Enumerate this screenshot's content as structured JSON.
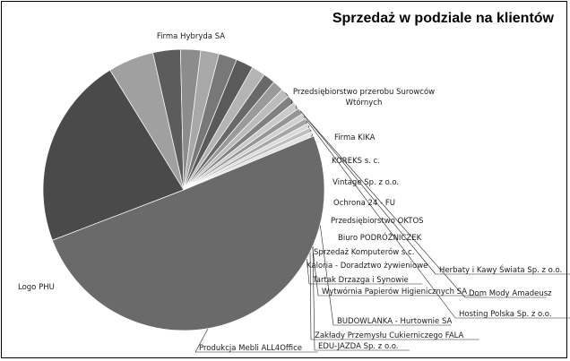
{
  "chart_data": {
    "type": "pie",
    "title": "Sprzedaż w podziale na klientów",
    "legend": "none",
    "slices": [
      {
        "label": "Firma Hybryda SA",
        "value": 21.0,
        "color": "#4a4a4a"
      },
      {
        "label": "Przedsiębiorstwo przerobu Surowców Wtórnych",
        "value": 5.0,
        "color": "#a0a0a0"
      },
      {
        "label": "Firma KIKA",
        "value": 3.0,
        "color": "#5c5c5c"
      },
      {
        "label": "KOREKS s. c.",
        "value": 2.2,
        "color": "#8c8c8c"
      },
      {
        "label": "Vintage Sp. z o.o.",
        "value": 2.0,
        "color": "#a8a8a8"
      },
      {
        "label": "Ochrona 24 - FU",
        "value": 2.0,
        "color": "#787878"
      },
      {
        "label": "Przedsiębiorstwo OKTOS",
        "value": 1.9,
        "color": "#5a5a5a"
      },
      {
        "label": "Biuro PODRÓŻNICZEK",
        "value": 1.5,
        "color": "#b4b4b4"
      },
      {
        "label": "Sprzedaż Komputerów s.c.",
        "value": 1.3,
        "color": "#696969"
      },
      {
        "label": "Kaloria - Doradztwo żywieniowe",
        "value": 1.2,
        "color": "#9a9a9a"
      },
      {
        "label": "Herbaty i Kawy Świata Sp. z o.o.",
        "value": 1.0,
        "color": "#bcbcbc"
      },
      {
        "label": "Tartak Drzazga i Synowie",
        "value": 0.9,
        "color": "#808080"
      },
      {
        "label": "Wytwórnia Papierów Higienicznych SA",
        "value": 0.8,
        "color": "#cacaca"
      },
      {
        "label": "Dom Mody Amadeusz",
        "value": 0.7,
        "color": "#959595"
      },
      {
        "label": "Hosting Polska Sp. z o.o.",
        "value": 0.6,
        "color": "#d0d0d0"
      },
      {
        "label": "BUDOWLANKA - Hurtownie SA",
        "value": 0.6,
        "color": "#a6a6a6"
      },
      {
        "label": "Zakłady Przemysłu Cukierniczego FALA",
        "value": 0.5,
        "color": "#dadada"
      },
      {
        "label": "EDU-JAZDA Sp. z o.o.",
        "value": 0.5,
        "color": "#bfbfbf"
      },
      {
        "label": "Produkcja Mebli ALL4Office",
        "value": 0.5,
        "color": "#e2e2e2"
      },
      {
        "label": "Logo PHU",
        "value": 48.0,
        "color": "#6a6a6a"
      }
    ]
  }
}
